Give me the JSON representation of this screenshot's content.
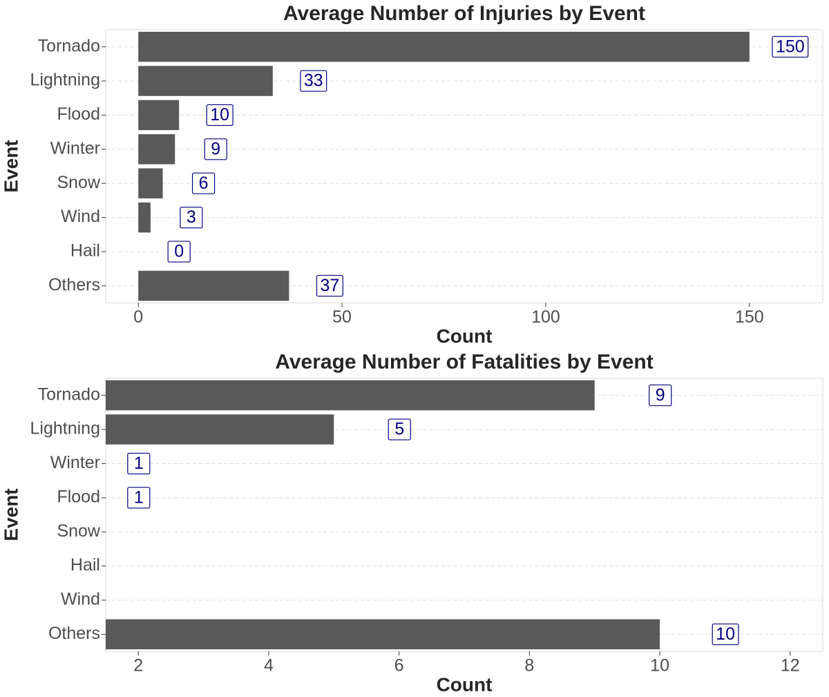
{
  "chart_data": [
    {
      "type": "bar",
      "orientation": "horizontal",
      "title": "Average Number of Injuries by Event",
      "xlabel": "Count",
      "ylabel": "Event",
      "categories": [
        "Tornado",
        "Lightning",
        "Flood",
        "Winter",
        "Snow",
        "Wind",
        "Hail",
        "Others"
      ],
      "values": [
        150,
        33,
        10,
        9,
        6,
        3,
        0,
        37
      ],
      "color": "#595959",
      "label_color": "#000080",
      "xlim": [
        -8,
        168
      ],
      "xticks": [
        0,
        50,
        100,
        150
      ],
      "grid": true
    },
    {
      "type": "bar",
      "orientation": "horizontal",
      "title": "Average Number of Fatalities by Event",
      "xlabel": "Count",
      "ylabel": "Event",
      "categories": [
        "Tornado",
        "Lightning",
        "Winter",
        "Flood",
        "Snow",
        "Hail",
        "Wind",
        "Others"
      ],
      "values": [
        9,
        5,
        1,
        1,
        null,
        null,
        null,
        10
      ],
      "color": "#595959",
      "label_color": "#000080",
      "xlim": [
        1.5,
        12.5
      ],
      "xticks": [
        2,
        4,
        6,
        8,
        10,
        12
      ],
      "grid": true
    }
  ]
}
